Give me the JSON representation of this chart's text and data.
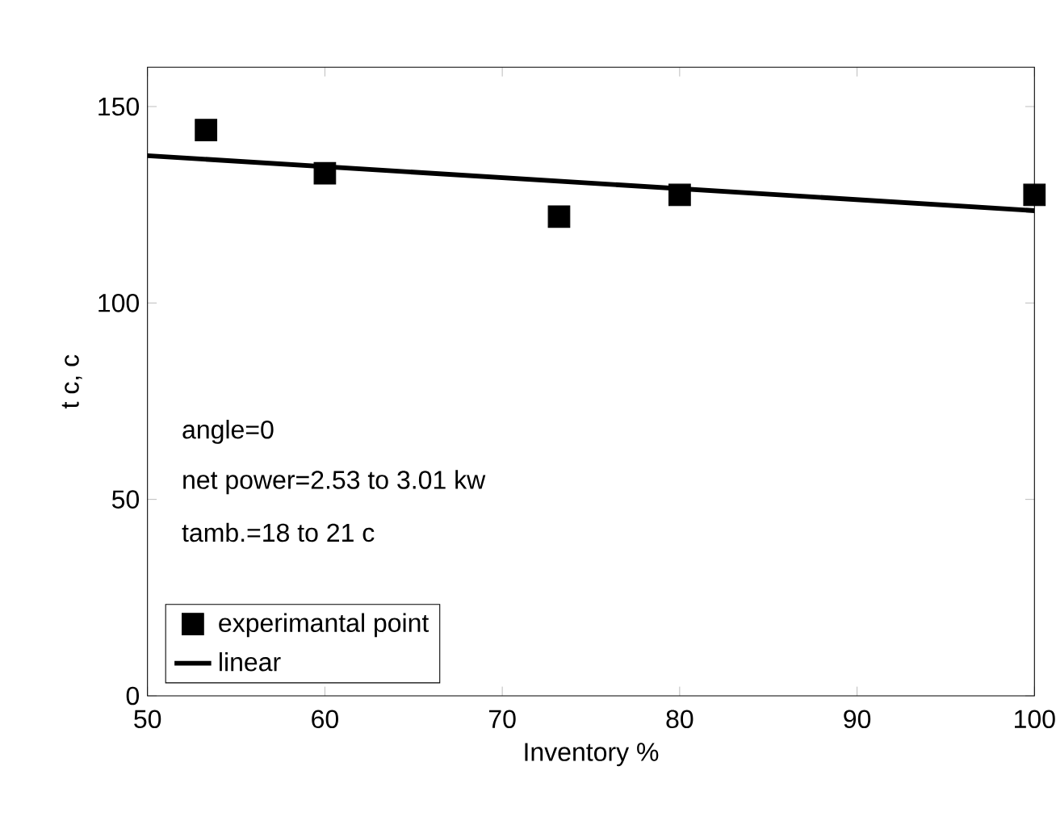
{
  "chart_data": {
    "type": "scatter",
    "xlabel": "Inventory %",
    "ylabel": "t c, c",
    "series": [
      {
        "name": "experimantal point",
        "color": "#000000",
        "marker": "square",
        "x": [
          53.3,
          60,
          73.2,
          80,
          100
        ],
        "values": [
          144,
          133,
          122,
          127.5,
          127.5
        ]
      },
      {
        "name": "linear",
        "type": "line",
        "color": "#000000",
        "marker": "none",
        "x": [
          50,
          100
        ],
        "values": [
          137.5,
          123.5
        ]
      }
    ],
    "xlim": [
      50,
      100
    ],
    "ylim": [
      0,
      160
    ],
    "xticks": [
      50,
      60,
      70,
      80,
      90,
      100
    ],
    "yticks": [
      0,
      50,
      100,
      150
    ],
    "annotations": [
      "angle=0",
      "net power=2.53 to 3.01 kw",
      "tamb.=18 to 21 c"
    ],
    "grid": false,
    "legend": "bottom left"
  }
}
